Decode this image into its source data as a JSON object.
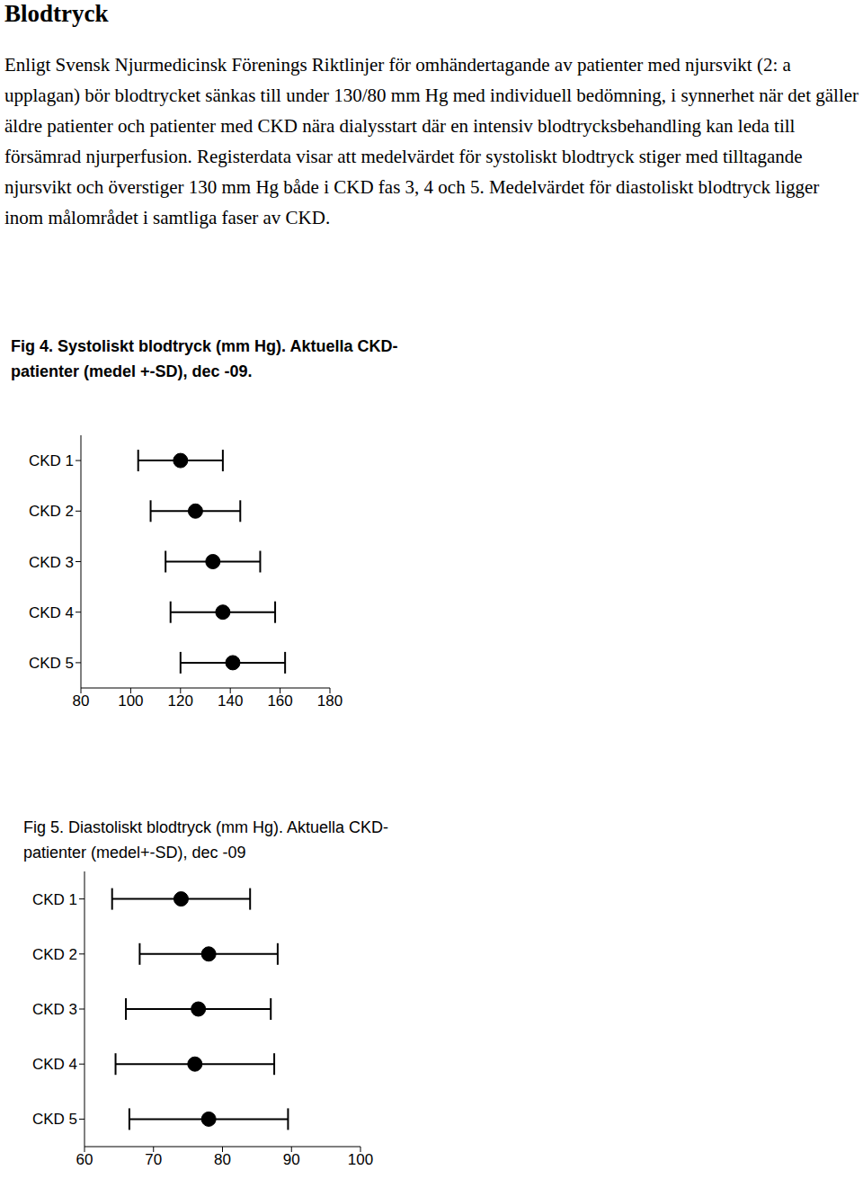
{
  "document": {
    "heading": "Blodtryck",
    "paragraph": "Enligt Svensk Njurmedicinsk Förenings Riktlinjer för omhändertagande av patienter med njursvikt (2: a upplagan) bör blodtrycket sänkas till under 130/80 mm Hg med individuell bedömning, i synnerhet när det gäller äldre patienter och patienter med CKD nära dialysstart där en intensiv blodtrycksbehandling kan leda till försämrad njurperfusion. Registerdata visar att medelvärdet för systoliskt blodtryck stiger med tilltagande njursvikt och överstiger 130 mm Hg både i CKD fas 3, 4 och 5. Medelvärdet för diastoliskt blodtryck ligger inom målområdet i samtliga faser av CKD."
  },
  "chart_data": [
    {
      "type": "scatter",
      "title": "Fig 4. Systoliskt blodtryck (mm Hg). Aktuella CKD-patienter (medel +-SD), dec -09.",
      "categories": [
        "CKD 1",
        "CKD 2",
        "CKD 3",
        "CKD 4",
        "CKD 5"
      ],
      "values": [
        120,
        126,
        133,
        137,
        141
      ],
      "errors": [
        17,
        18,
        19,
        21,
        21
      ],
      "color": "#000000",
      "xlim": [
        80,
        180
      ],
      "xticks": [
        80,
        100,
        120,
        140,
        160,
        180
      ],
      "grid": false
    },
    {
      "type": "scatter",
      "title": "Fig 5. Diastoliskt blodtryck (mm Hg). Aktuella CKD- patienter (medel+-SD), dec -09",
      "categories": [
        "CKD 1",
        "CKD 2",
        "CKD 3",
        "CKD 4",
        "CKD 5"
      ],
      "values": [
        74,
        78,
        76.5,
        76,
        78
      ],
      "errors": [
        10,
        10,
        10.5,
        11.5,
        11.5
      ],
      "color": "#000000",
      "xlim": [
        60,
        100
      ],
      "xticks": [
        60,
        70,
        80,
        90,
        100
      ],
      "grid": false
    }
  ]
}
